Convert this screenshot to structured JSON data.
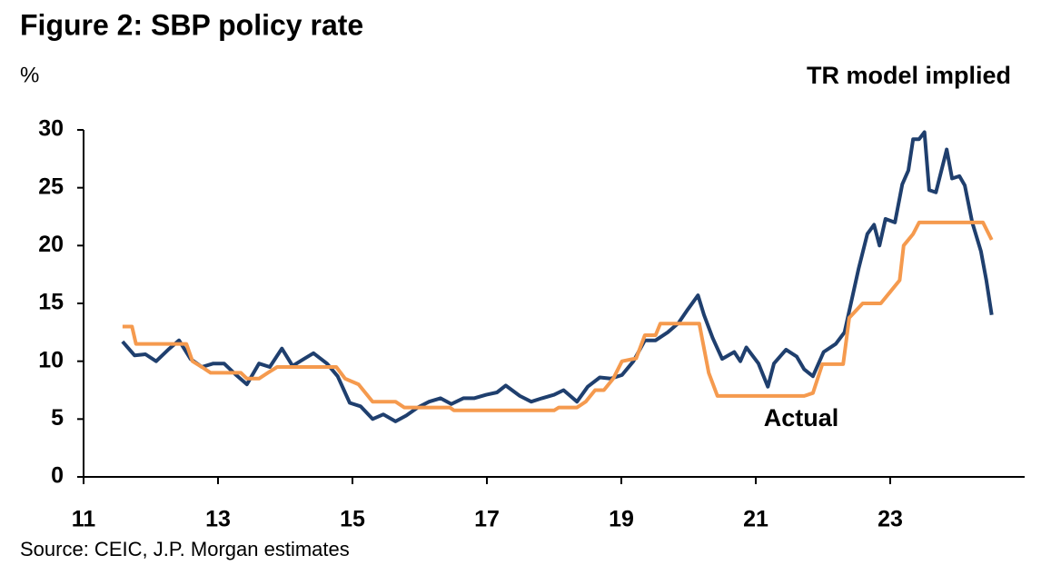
{
  "chart_data": {
    "type": "line",
    "title": "Figure 2: SBP policy rate",
    "y_label": "%",
    "source": "Source: CEIC, J.P. Morgan estimates",
    "xlim": [
      11,
      25
    ],
    "xticks": [
      11,
      13,
      15,
      17,
      19,
      21,
      23
    ],
    "ylim": [
      0,
      30
    ],
    "yticks": [
      0,
      5,
      10,
      15,
      20,
      25,
      30
    ],
    "grid": false,
    "series": [
      {
        "name": "TR model implied",
        "color": "#1f3f6e",
        "x": [
          11.58,
          11.76,
          11.92,
          12.08,
          12.26,
          12.42,
          12.59,
          12.76,
          12.93,
          13.09,
          13.27,
          13.43,
          13.61,
          13.77,
          13.95,
          14.11,
          14.28,
          14.42,
          14.62,
          14.78,
          14.96,
          15.12,
          15.3,
          15.46,
          15.64,
          15.8,
          15.97,
          16.14,
          16.31,
          16.47,
          16.65,
          16.81,
          16.99,
          17.15,
          17.28,
          17.49,
          17.66,
          17.82,
          18.0,
          18.14,
          18.34,
          18.5,
          18.68,
          18.84,
          19.01,
          19.18,
          19.35,
          19.51,
          19.69,
          19.85,
          19.99,
          20.14,
          20.23,
          20.36,
          20.5,
          20.68,
          20.77,
          20.86,
          21.04,
          21.18,
          21.27,
          21.45,
          21.61,
          21.72,
          21.85,
          22.01,
          22.19,
          22.32,
          22.53,
          22.66,
          22.76,
          22.84,
          22.93,
          23.07,
          23.18,
          23.27,
          23.34,
          23.43,
          23.51,
          23.58,
          23.68,
          23.84,
          23.92,
          24.03,
          24.11,
          24.22,
          24.35,
          24.43,
          24.51
        ],
        "values": [
          11.7,
          10.5,
          10.6,
          10,
          11,
          11.8,
          10.2,
          9.5,
          9.8,
          9.8,
          8.8,
          8.0,
          9.8,
          9.5,
          11.1,
          9.6,
          10.2,
          10.7,
          9.8,
          8.7,
          6.4,
          6.1,
          5.0,
          5.4,
          4.8,
          5.3,
          6.0,
          6.5,
          6.8,
          6.3,
          6.8,
          6.8,
          7.1,
          7.3,
          7.9,
          7.0,
          6.5,
          6.8,
          7.1,
          7.5,
          6.5,
          7.8,
          8.6,
          8.5,
          8.8,
          10.0,
          11.8,
          11.8,
          12.5,
          13.3,
          14.5,
          15.7,
          14.0,
          12.0,
          10.2,
          10.8,
          10.0,
          11.2,
          9.8,
          7.8,
          9.8,
          11.0,
          10.4,
          9.3,
          8.7,
          10.8,
          11.5,
          12.5,
          18,
          21,
          21.8,
          20.0,
          22.3,
          22,
          25.3,
          26.5,
          29.2,
          29.2,
          29.8,
          24.8,
          24.6,
          28.3,
          25.8,
          26.0,
          25.2,
          22,
          19.5,
          17,
          14
        ]
      },
      {
        "name": "Actual",
        "color": "#f59a4e",
        "x": [
          11.58,
          11.72,
          11.78,
          12.53,
          12.62,
          12.76,
          12.89,
          13.34,
          13.43,
          13.61,
          13.74,
          13.88,
          14.76,
          14.89,
          15.09,
          15.3,
          15.64,
          15.77,
          16.45,
          16.51,
          18.0,
          18.07,
          18.34,
          18.47,
          18.61,
          18.74,
          18.88,
          19.01,
          19.22,
          19.35,
          19.51,
          19.58,
          20.16,
          20.3,
          20.43,
          21.72,
          21.85,
          21.99,
          22.3,
          22.39,
          22.59,
          22.86,
          23.0,
          23.14,
          23.2,
          23.34,
          23.43,
          24.38,
          24.51
        ],
        "values": [
          13,
          13,
          11.5,
          11.5,
          10.0,
          9.5,
          9.0,
          9.0,
          8.5,
          8.5,
          9.0,
          9.5,
          9.5,
          8.5,
          8.0,
          6.5,
          6.5,
          6.0,
          6.0,
          5.75,
          5.75,
          6.0,
          6.0,
          6.5,
          7.5,
          7.5,
          8.5,
          10.0,
          10.25,
          12.25,
          12.25,
          13.25,
          13.25,
          9,
          7,
          7,
          7.25,
          9.75,
          9.75,
          13.75,
          15,
          15,
          16,
          17,
          20,
          21,
          22,
          22,
          20.5
        ]
      }
    ]
  }
}
